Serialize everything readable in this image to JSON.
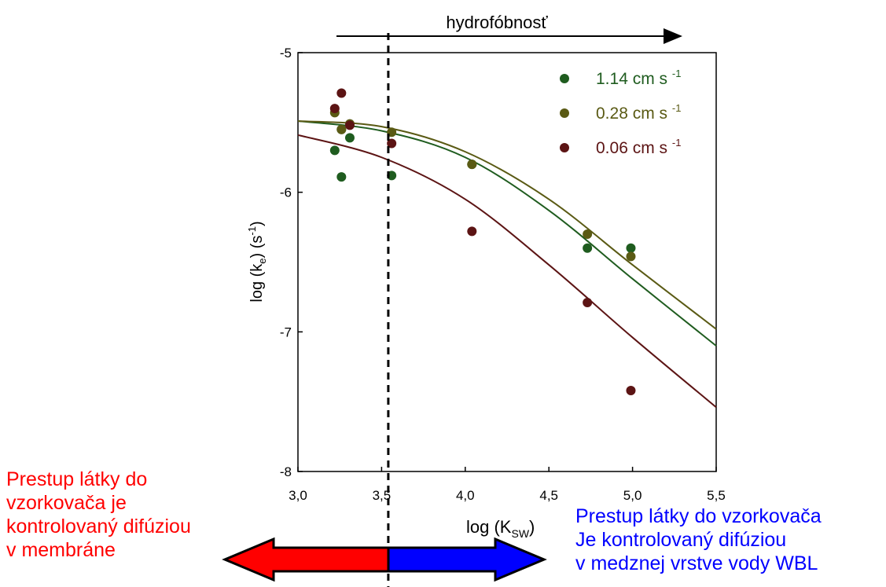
{
  "chart_data": {
    "type": "scatter",
    "top_label": "hydrofóbnosť",
    "xlabel": "log (K",
    "xlabel_sub": "SW",
    "xlabel_end": ")",
    "ylabel": "log (k",
    "ylabel_sub": "e",
    "ylabel_end": ") (s",
    "ylabel_sup": "-1",
    "ylabel_close": ")",
    "xlim": [
      3.0,
      5.5
    ],
    "ylim": [
      -8,
      -5
    ],
    "x_ticks": [
      "3,0",
      "3,5",
      "4,0",
      "4,5",
      "5,0",
      "5,5"
    ],
    "x_tick_values": [
      3.0,
      3.5,
      4.0,
      4.5,
      5.0,
      5.5
    ],
    "y_ticks": [
      "-5",
      "-6",
      "-7",
      "-8"
    ],
    "y_tick_values": [
      -5,
      -6,
      -7,
      -8
    ],
    "divider_x": 3.54,
    "legend_position": "top-right",
    "series": [
      {
        "name": "1.14 cm s",
        "name_sup": "-1",
        "color": "#1f5c1f",
        "points": [
          [
            3.22,
            -5.7
          ],
          [
            3.26,
            -5.55
          ],
          [
            3.26,
            -5.89
          ],
          [
            3.31,
            -5.61
          ],
          [
            3.56,
            -5.88
          ],
          [
            4.04,
            -5.8
          ],
          [
            4.73,
            -6.4
          ],
          [
            4.99,
            -6.4
          ]
        ],
        "fit": [
          [
            3.0,
            -5.49
          ],
          [
            3.5,
            -5.56
          ],
          [
            4.0,
            -5.75
          ],
          [
            4.5,
            -6.13
          ],
          [
            5.0,
            -6.62
          ],
          [
            5.5,
            -7.1
          ]
        ]
      },
      {
        "name": "0.28 cm s",
        "name_sup": "-1",
        "color": "#5a5a14",
        "points": [
          [
            3.22,
            -5.43
          ],
          [
            3.26,
            -5.55
          ],
          [
            3.31,
            -5.51
          ],
          [
            3.56,
            -5.57
          ],
          [
            4.04,
            -5.8
          ],
          [
            4.73,
            -6.3
          ],
          [
            4.99,
            -6.46
          ]
        ],
        "fit": [
          [
            3.0,
            -5.49
          ],
          [
            3.5,
            -5.53
          ],
          [
            4.0,
            -5.71
          ],
          [
            4.5,
            -6.05
          ],
          [
            5.0,
            -6.52
          ],
          [
            5.5,
            -6.98
          ]
        ]
      },
      {
        "name": "0.06 cm s",
        "name_sup": "-1",
        "color": "#5c1414",
        "points": [
          [
            3.22,
            -5.4
          ],
          [
            3.26,
            -5.29
          ],
          [
            3.31,
            -5.52
          ],
          [
            3.56,
            -5.65
          ],
          [
            4.04,
            -6.28
          ],
          [
            4.73,
            -6.79
          ],
          [
            4.99,
            -7.42
          ]
        ],
        "fit": [
          [
            3.0,
            -5.59
          ],
          [
            3.5,
            -5.75
          ],
          [
            4.0,
            -6.05
          ],
          [
            4.5,
            -6.52
          ],
          [
            5.0,
            -7.04
          ],
          [
            5.5,
            -7.54
          ]
        ]
      }
    ]
  },
  "annotations": {
    "left_lines": [
      "Prestup látky do",
      "vzorkovača je",
      "kontrolovaný difúziou",
      "v membráne"
    ],
    "right_lines": [
      "Prestup látky do vzorkovača",
      "Je kontrolovaný difúziou",
      "v medznej vrstve vody WBL"
    ],
    "left_color": "#ff0000",
    "right_color": "#0000ff"
  }
}
